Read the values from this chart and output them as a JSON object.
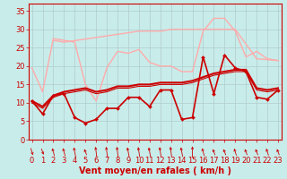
{
  "background_color": "#c8ecea",
  "grid_color": "#b0cccc",
  "xlabel": "Vent moyen/en rafales ( km/h )",
  "xlabel_color": "#cc0000",
  "xlabel_fontsize": 7,
  "tick_color": "#cc0000",
  "tick_fontsize": 6,
  "yticks": [
    0,
    5,
    10,
    15,
    20,
    25,
    30,
    35
  ],
  "xticks": [
    0,
    1,
    2,
    3,
    4,
    5,
    6,
    7,
    8,
    9,
    10,
    11,
    12,
    13,
    14,
    15,
    16,
    17,
    18,
    19,
    20,
    21,
    22,
    23
  ],
  "xlim": [
    -0.3,
    23.3
  ],
  "ylim": [
    0,
    37
  ],
  "series": [
    {
      "x": [
        0,
        1,
        2,
        3,
        4,
        5,
        6,
        7,
        8,
        9,
        10,
        11,
        12,
        13,
        14,
        15,
        16,
        17,
        18,
        19,
        20,
        21,
        22,
        23
      ],
      "y": [
        19.5,
        13.0,
        27.5,
        27.0,
        26.5,
        15.0,
        10.5,
        19.5,
        24.0,
        23.5,
        24.5,
        21.0,
        20.0,
        20.0,
        18.5,
        18.5,
        29.5,
        33.0,
        33.0,
        29.5,
        22.5,
        24.0,
        22.0,
        21.5
      ],
      "color": "#ffaaaa",
      "lw": 1.0,
      "marker": null,
      "ms": 0
    },
    {
      "x": [
        2,
        3,
        10,
        11,
        12,
        13,
        14,
        15,
        16,
        17,
        18,
        19,
        21,
        23
      ],
      "y": [
        27.0,
        26.5,
        29.5,
        29.5,
        29.5,
        30.0,
        30.0,
        30.0,
        30.0,
        30.0,
        30.0,
        30.0,
        22.0,
        21.5
      ],
      "color": "#ffaaaa",
      "lw": 1.0,
      "marker": null,
      "ms": 0
    },
    {
      "x": [
        0,
        1,
        2,
        3,
        4,
        5,
        6,
        7,
        8,
        9,
        10,
        11,
        12,
        13,
        14,
        15,
        16,
        17,
        18,
        19,
        20,
        21,
        22,
        23
      ],
      "y": [
        10.5,
        7.0,
        12.0,
        12.5,
        6.0,
        4.5,
        5.5,
        8.5,
        8.5,
        11.5,
        11.5,
        9.0,
        13.5,
        13.5,
        5.5,
        6.0,
        22.5,
        12.5,
        23.0,
        19.5,
        18.5,
        11.5,
        11.0,
        13.5
      ],
      "color": "#cc0000",
      "lw": 1.2,
      "marker": "D",
      "ms": 2.0
    },
    {
      "x": [
        0,
        1,
        2,
        3,
        4,
        5,
        6,
        7,
        8,
        9,
        10,
        11,
        12,
        13,
        14,
        15,
        16,
        17,
        18,
        19,
        20,
        21,
        22,
        23
      ],
      "y": [
        10.5,
        9.0,
        12.0,
        13.0,
        13.5,
        14.0,
        13.0,
        13.5,
        14.5,
        14.5,
        15.0,
        15.0,
        15.5,
        15.5,
        15.5,
        16.0,
        17.0,
        18.0,
        18.5,
        19.0,
        19.0,
        14.0,
        13.5,
        14.0
      ],
      "color": "#cc0000",
      "lw": 1.5,
      "marker": null,
      "ms": 0
    },
    {
      "x": [
        0,
        1,
        2,
        3,
        4,
        5,
        6,
        7,
        8,
        9,
        10,
        11,
        12,
        13,
        14,
        15,
        16,
        17,
        18,
        19,
        20,
        21,
        22,
        23
      ],
      "y": [
        10.0,
        8.5,
        11.5,
        12.5,
        13.0,
        13.5,
        12.5,
        13.0,
        14.0,
        14.0,
        14.5,
        14.5,
        15.0,
        15.0,
        15.0,
        15.5,
        16.5,
        17.5,
        18.0,
        18.5,
        18.5,
        13.5,
        13.0,
        13.5
      ],
      "color": "#cc0000",
      "lw": 0.8,
      "marker": null,
      "ms": 0
    }
  ],
  "wind_arrow_angles_deg": [
    45,
    50,
    220,
    220,
    210,
    230,
    200,
    200,
    200,
    210,
    205,
    210,
    205,
    200,
    210,
    180,
    220,
    230,
    230,
    225,
    230,
    230,
    225,
    230
  ]
}
